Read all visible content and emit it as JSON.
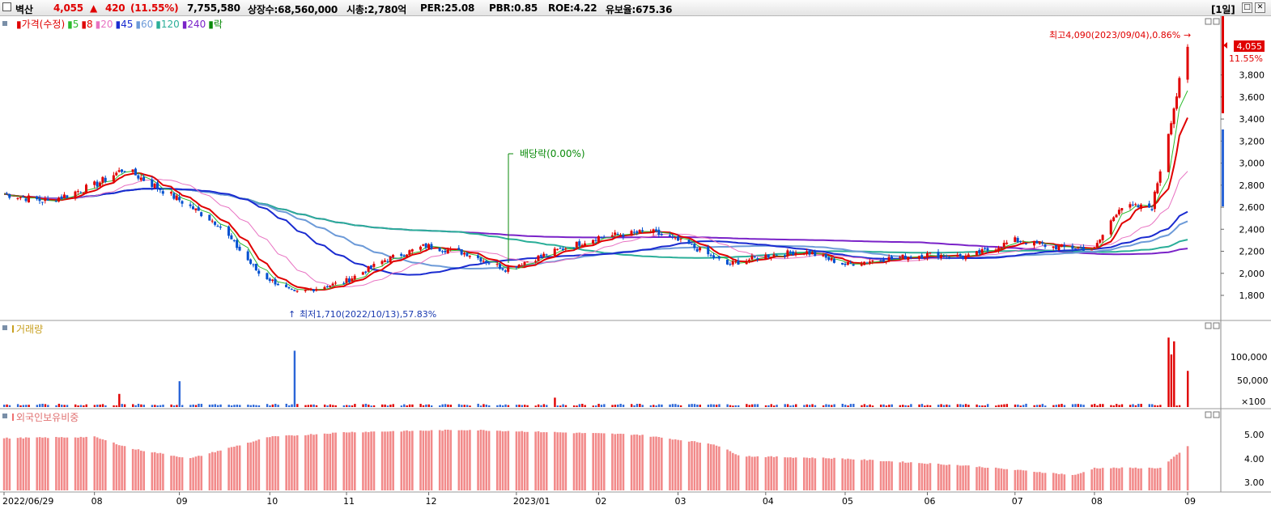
{
  "header": {
    "stock_name": "벽산",
    "price": "4,055",
    "change_arrow": "▲",
    "change": "420",
    "change_pct": "(11.55%)",
    "volume": "7,755,580",
    "listed_shares": "상장수:68,560,000",
    "market_cap": "시총:2,780억",
    "per": "PER:25.08",
    "pbr": "PBR:0.85",
    "roe": "ROE:4.22",
    "float_ratio": "유보율:675.36",
    "period": "[1일]",
    "colors": {
      "up": "#e00000",
      "down": "#0050d0"
    }
  },
  "price_panel": {
    "legend": [
      {
        "label": "가격(수정)",
        "color": "#e00000"
      },
      {
        "label": "5",
        "color": "#2dbb2d"
      },
      {
        "label": "8",
        "color": "#e00000"
      },
      {
        "label": "20",
        "color": "#e872c2"
      },
      {
        "label": "45",
        "color": "#1a2bd0"
      },
      {
        "label": "60",
        "color": "#6c9ad8"
      },
      {
        "label": "120",
        "color": "#2aae98"
      },
      {
        "label": "240",
        "color": "#7a22c8"
      },
      {
        "label": "락",
        "color": "#0a8a0a"
      }
    ],
    "y_ticks": [
      "3,800",
      "3,600",
      "3,400",
      "3,200",
      "3,000",
      "2,800",
      "2,600",
      "2,400",
      "2,200",
      "2,000",
      "1,800"
    ],
    "current_price_label": "4,055",
    "current_pct_label": "11.55%",
    "high_annotation": "최고4,090(2023/09/04),0.86%",
    "low_annotation": "최저1,710(2022/10/13),57.83%",
    "dividend_annotation": "배당락(0.00%)"
  },
  "volume_panel": {
    "legend": "거래량",
    "y_ticks": [
      "100,000",
      "50,000"
    ],
    "unit": "×100"
  },
  "foreign_panel": {
    "legend": "외국인보유비중",
    "y_ticks": [
      "5.00",
      "4.00",
      "3.00"
    ]
  },
  "x_axis": {
    "labels": [
      "2022/06/29",
      "08",
      "09",
      "10",
      "11",
      "12",
      "2023/01",
      "02",
      "03",
      "04",
      "05",
      "06",
      "07",
      "08",
      "09"
    ]
  },
  "chart_data": [
    {
      "type": "candlestick",
      "title": "",
      "y_range": [
        1710,
        4090
      ],
      "y_ticks": [
        1800,
        2000,
        2200,
        2400,
        2600,
        2800,
        3000,
        3200,
        3400,
        3600,
        3800
      ],
      "high": {
        "value": 4090,
        "date": "2023/09/04"
      },
      "low": {
        "value": 1710,
        "date": "2022/10/13"
      },
      "last_close": 4055,
      "close_approx": [
        {
          "x": "2022/06/29",
          "close": 2720
        },
        {
          "x": "2022/07/15",
          "close": 2650
        },
        {
          "x": "2022/08/01",
          "close": 2800
        },
        {
          "x": "2022/08/12",
          "close": 2950
        },
        {
          "x": "2022/08/31",
          "close": 2680
        },
        {
          "x": "2022/09/15",
          "close": 2450
        },
        {
          "x": "2022/09/30",
          "close": 2000
        },
        {
          "x": "2022/10/13",
          "close": 1820
        },
        {
          "x": "2022/10/31",
          "close": 1920
        },
        {
          "x": "2022/11/15",
          "close": 2120
        },
        {
          "x": "2022/11/30",
          "close": 2250
        },
        {
          "x": "2022/12/15",
          "close": 2180
        },
        {
          "x": "2022/12/29",
          "close": 2040
        },
        {
          "x": "2023/01/16",
          "close": 2200
        },
        {
          "x": "2023/02/01",
          "close": 2330
        },
        {
          "x": "2023/02/20",
          "close": 2380
        },
        {
          "x": "2023/03/06",
          "close": 2260
        },
        {
          "x": "2023/03/20",
          "close": 2080
        },
        {
          "x": "2023/04/03",
          "close": 2160
        },
        {
          "x": "2023/04/17",
          "close": 2200
        },
        {
          "x": "2023/05/02",
          "close": 2080
        },
        {
          "x": "2023/05/16",
          "close": 2130
        },
        {
          "x": "2023/06/01",
          "close": 2170
        },
        {
          "x": "2023/06/16",
          "close": 2150
        },
        {
          "x": "2023/07/03",
          "close": 2300
        },
        {
          "x": "2023/07/17",
          "close": 2240
        },
        {
          "x": "2023/08/01",
          "close": 2220
        },
        {
          "x": "2023/08/10",
          "close": 2600
        },
        {
          "x": "2023/08/22",
          "close": 2600
        },
        {
          "x": "2023/08/29",
          "close": 3400
        },
        {
          "x": "2023/09/04",
          "close": 4055
        }
      ]
    },
    {
      "type": "bar",
      "title": "",
      "unit": "×100",
      "y_ticks": [
        50000,
        100000
      ],
      "highlights": [
        {
          "x": "2022/08/10",
          "value": 28000
        },
        {
          "x": "2022/09/01",
          "value": 55000
        },
        {
          "x": "2022/10/13",
          "value": 120000
        },
        {
          "x": "2023/01/16",
          "value": 20000
        },
        {
          "x": "2023/08/28",
          "value": 148000
        },
        {
          "x": "2023/08/29",
          "value": 112000
        },
        {
          "x": "2023/08/30",
          "value": 140000
        },
        {
          "x": "2023/09/04",
          "value": 77000
        }
      ]
    },
    {
      "type": "bar",
      "title": "",
      "y_ticks": [
        3.0,
        4.0,
        5.0
      ],
      "values_approx": [
        {
          "x": "2022/06/29",
          "value": 4.85
        },
        {
          "x": "2022/08/01",
          "value": 4.9
        },
        {
          "x": "2022/08/15",
          "value": 4.4
        },
        {
          "x": "2022/09/05",
          "value": 4.0
        },
        {
          "x": "2022/10/04",
          "value": 4.9
        },
        {
          "x": "2022/11/01",
          "value": 5.1
        },
        {
          "x": "2022/12/15",
          "value": 5.2
        },
        {
          "x": "2023/02/15",
          "value": 5.0
        },
        {
          "x": "2023/03/15",
          "value": 4.6
        },
        {
          "x": "2023/03/25",
          "value": 4.1
        },
        {
          "x": "2023/04/30",
          "value": 4.0
        },
        {
          "x": "2023/06/15",
          "value": 3.7
        },
        {
          "x": "2023/07/25",
          "value": 3.3
        },
        {
          "x": "2023/08/01",
          "value": 3.6
        },
        {
          "x": "2023/08/25",
          "value": 3.6
        },
        {
          "x": "2023/09/04",
          "value": 4.5
        }
      ]
    }
  ]
}
